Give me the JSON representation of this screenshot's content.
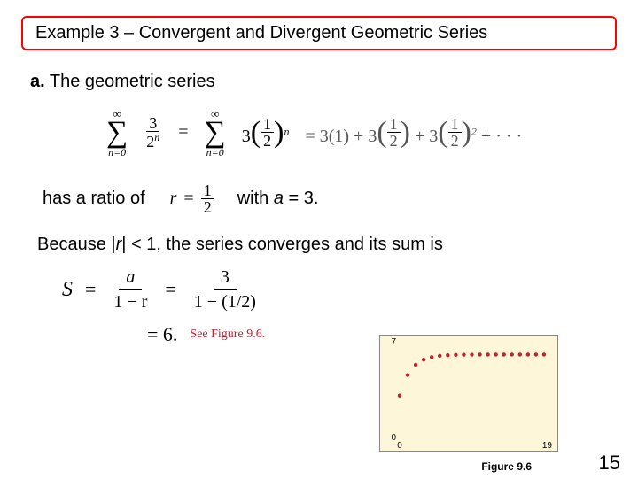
{
  "title": "Example 3 – Convergent and Divergent Geometric Series",
  "line_a_prefix": "a.",
  "line_a": " The geometric series",
  "has_ratio": "has a ratio of",
  "with_a": "with a = 3.",
  "converge_line": "Because |r| < 1, the series converges and its sum is",
  "see_fig": "See Figure 9.6.",
  "fig_caption": "Figure 9.6",
  "page": "15",
  "math": {
    "sigma": "∑",
    "inf": "∞",
    "n0": "n=0",
    "frac1_num": "3",
    "frac1_den": "2",
    "exp_n": "n",
    "three": "3",
    "half_num": "1",
    "half_den": "2",
    "eq": "=",
    "plus": "+",
    "dots": "· · ·",
    "term1": "3(1)",
    "sq": "2",
    "r_eq": "r",
    "S": "S",
    "a": "a",
    "one_minus_r": "1 − r",
    "one_minus_half": "1 − (1/2)",
    "six": "= 6."
  },
  "chart": {
    "background": "#fdf6d8",
    "point_color": "#c02030",
    "grid_color": "#888888",
    "x_max": 19,
    "y_max": 7,
    "y_ticks": [
      0,
      7
    ],
    "x_ticks": [
      0,
      19
    ],
    "tick_font_size": 10,
    "points": [
      [
        0,
        3.0
      ],
      [
        1,
        4.5
      ],
      [
        2,
        5.25
      ],
      [
        3,
        5.625
      ],
      [
        4,
        5.8125
      ],
      [
        5,
        5.906
      ],
      [
        6,
        5.953
      ],
      [
        7,
        5.977
      ],
      [
        8,
        5.988
      ],
      [
        9,
        5.994
      ],
      [
        10,
        5.997
      ],
      [
        11,
        5.998
      ],
      [
        12,
        5.999
      ],
      [
        13,
        6.0
      ],
      [
        14,
        6.0
      ],
      [
        15,
        6.0
      ],
      [
        16,
        6.0
      ],
      [
        17,
        6.0
      ],
      [
        18,
        6.0
      ]
    ],
    "point_radius": 2.2
  }
}
